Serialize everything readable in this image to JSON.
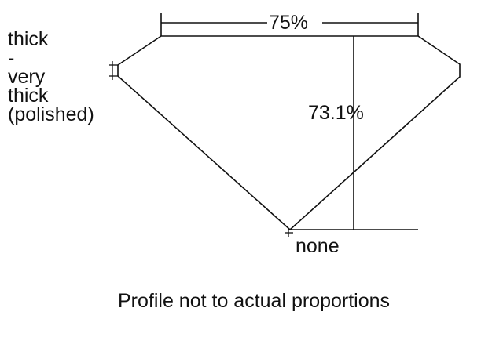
{
  "labels": {
    "table": "75%",
    "depth": "73.1%",
    "culet": "none",
    "girdle": [
      "thick",
      "-",
      "very",
      "thick",
      "(polished)"
    ],
    "caption": "Profile not to actual proportions"
  },
  "colors": {
    "line": "#111111",
    "background": "#ffffff"
  }
}
